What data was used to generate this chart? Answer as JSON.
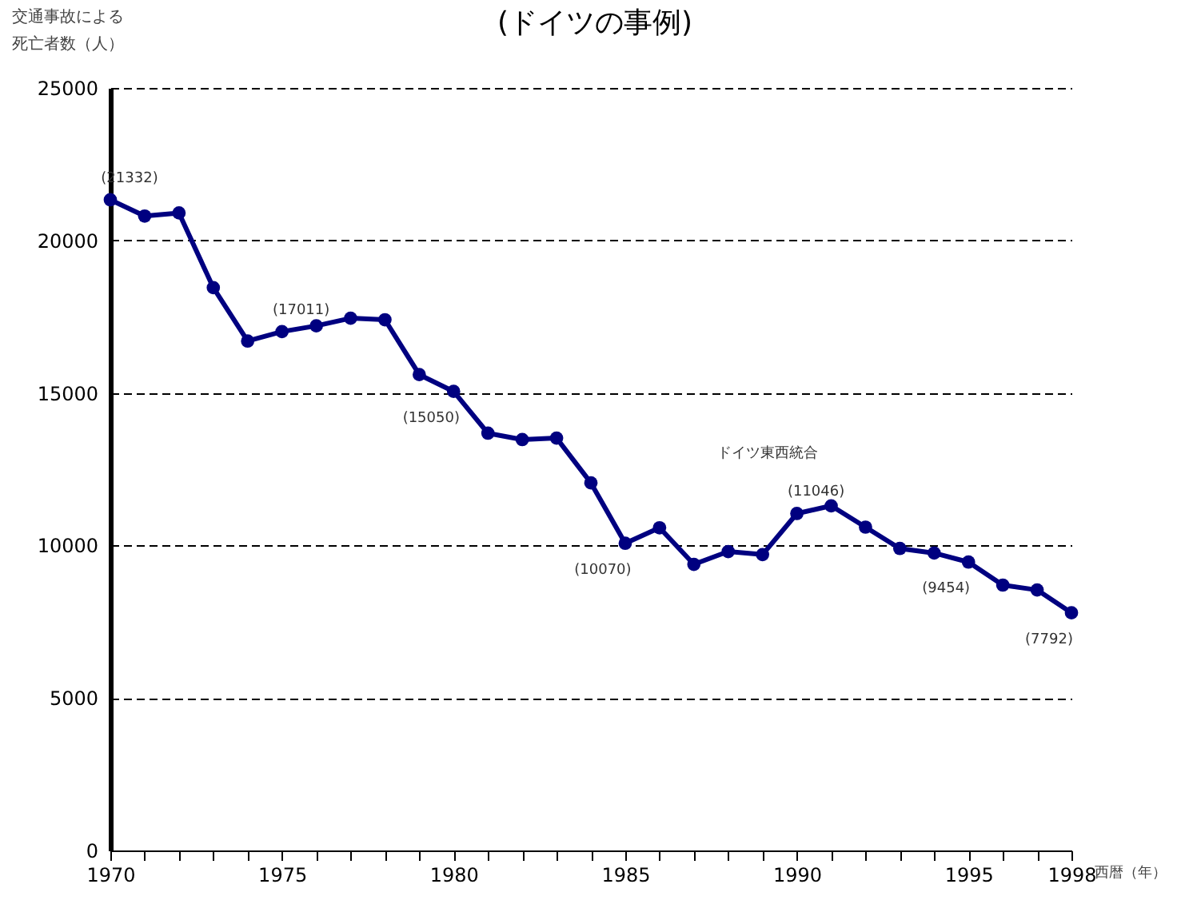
{
  "chart_data": {
    "type": "line",
    "title": "(ドイツの事例)",
    "ylabel": "交通事故による死亡者数（人）",
    "xlabel": "西暦（年）",
    "x": [
      1970,
      1971,
      1972,
      1973,
      1974,
      1975,
      1976,
      1977,
      1978,
      1979,
      1980,
      1981,
      1982,
      1983,
      1984,
      1985,
      1986,
      1987,
      1988,
      1989,
      1990,
      1991,
      1992,
      1993,
      1994,
      1995,
      1996,
      1997,
      1998
    ],
    "series": [
      {
        "color": "#000080",
        "values": [
          21332,
          20800,
          20900,
          18450,
          16700,
          17011,
          17200,
          17450,
          17400,
          15600,
          15050,
          13680,
          13470,
          13520,
          12050,
          10070,
          10580,
          9380,
          9800,
          9700,
          11046,
          11300,
          10600,
          9900,
          9750,
          9454,
          8700,
          8540,
          7792
        ],
        "value_labels": [
          "(21332)",
          null,
          null,
          null,
          null,
          "(17011)",
          null,
          null,
          null,
          null,
          "(15050)",
          null,
          null,
          null,
          null,
          "(10070)",
          null,
          null,
          null,
          null,
          "(11046)",
          null,
          null,
          null,
          null,
          "(9454)",
          null,
          null,
          "(7792)"
        ]
      }
    ],
    "annotations": [
      "ドイツ東西統合"
    ],
    "xlim": [
      1970,
      1998
    ],
    "ylim": [
      0,
      25000
    ],
    "xticks": [
      1970,
      {
        "value": 1971,
        "label": null
      },
      {
        "value": 1972,
        "label": null
      },
      {
        "value": 1973,
        "label": null
      },
      {
        "value": 1974,
        "label": null
      },
      1975,
      {
        "value": 1976,
        "label": null
      },
      {
        "value": 1977,
        "label": null
      },
      {
        "value": 1978,
        "label": null
      },
      {
        "value": 1979,
        "label": null
      },
      1980,
      {
        "value": 1981,
        "label": null
      },
      {
        "value": 1982,
        "label": null
      },
      {
        "value": 1983,
        "label": null
      },
      {
        "value": 1984,
        "label": null
      },
      1985,
      {
        "value": 1986,
        "label": null
      },
      {
        "value": 1987,
        "label": null
      },
      {
        "value": 1988,
        "label": null
      },
      {
        "value": 1989,
        "label": null
      },
      1990,
      {
        "value": 1991,
        "label": null
      },
      {
        "value": 1992,
        "label": null
      },
      {
        "value": 1993,
        "label": null
      },
      {
        "value": 1994,
        "label": null
      },
      1995,
      {
        "value": 1996,
        "label": null
      },
      {
        "value": 1997,
        "label": null
      },
      1998
    ],
    "yticks": [
      0,
      5000,
      10000,
      15000,
      20000,
      25000
    ],
    "grid": "y",
    "marker": "circle",
    "line_style": "solid"
  }
}
